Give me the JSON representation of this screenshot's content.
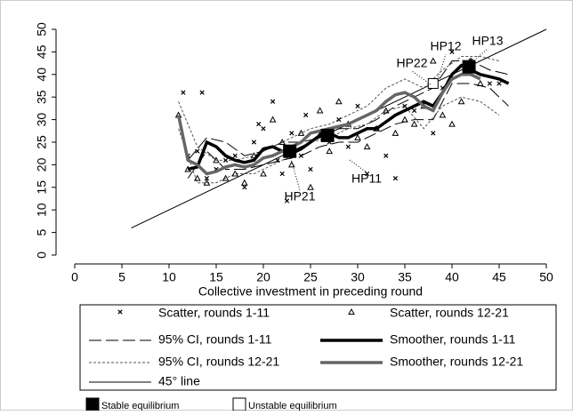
{
  "chart_data": {
    "type": "scatter-smoother",
    "xlabel": "Collective investment in preceding round",
    "xlim": [
      0,
      50
    ],
    "ylim": [
      0,
      50
    ],
    "xticks": [
      0,
      5,
      10,
      15,
      20,
      25,
      30,
      35,
      40,
      45,
      50
    ],
    "yticks": [
      0,
      5,
      10,
      15,
      20,
      25,
      30,
      35,
      40,
      45,
      50
    ],
    "series": [
      {
        "name": "Scatter, rounds 1-11",
        "kind": "scatter",
        "marker": "x",
        "color": "#000000",
        "x": [
          11.5,
          12,
          13,
          13.5,
          14,
          15,
          16,
          17,
          18,
          19,
          19.5,
          20,
          21,
          21.5,
          22,
          22.5,
          23,
          24,
          24.5,
          25,
          26,
          27,
          28,
          29,
          30,
          31,
          32,
          33,
          34,
          35,
          36,
          38,
          39,
          40,
          42,
          44,
          45
        ],
        "values": [
          36,
          22,
          23,
          36,
          17,
          19,
          21,
          22,
          15,
          25,
          29,
          28,
          34,
          21,
          18,
          12,
          27,
          22,
          31,
          19,
          27,
          25,
          30,
          24,
          33,
          18,
          28,
          22,
          17,
          33,
          32,
          27,
          37,
          45,
          43,
          38,
          38
        ]
      },
      {
        "name": "Scatter, rounds 12-21",
        "kind": "scatter",
        "marker": "triangle",
        "color": "#000000",
        "x": [
          11,
          12,
          13,
          14,
          15,
          16,
          17,
          18,
          19,
          20,
          21,
          22,
          23,
          24,
          25,
          26,
          27,
          28,
          29,
          30,
          31,
          32,
          33,
          34,
          35,
          36,
          37,
          38,
          39,
          40,
          41,
          42,
          43
        ],
        "values": [
          31,
          19,
          17,
          16,
          21,
          17,
          18,
          16,
          22,
          18,
          30,
          25,
          20,
          27,
          15,
          32,
          23,
          34,
          29,
          26,
          24,
          28,
          32,
          27,
          30,
          29,
          33,
          43,
          31,
          29,
          34,
          43,
          38
        ]
      },
      {
        "name": "95% CI, rounds 1-11",
        "kind": "ci",
        "dash": "long",
        "color": "#000000",
        "x": [
          12,
          14,
          16,
          18,
          20,
          22,
          24,
          26,
          28,
          30,
          32,
          34,
          36,
          38,
          40,
          42,
          44,
          46
        ],
        "values": [
          21,
          26,
          25,
          22,
          23,
          25,
          25,
          26,
          28,
          28,
          30,
          33,
          35,
          37,
          43,
          43,
          41,
          40
        ],
        "lower": [
          17,
          23,
          19,
          19,
          20,
          21,
          22,
          24,
          25,
          25,
          27,
          29,
          30,
          30,
          38,
          38,
          37,
          33
        ]
      },
      {
        "name": "Smoother, rounds 1-11",
        "kind": "smoother",
        "color": "#000000",
        "x": [
          12,
          13,
          14,
          15,
          16,
          17,
          18,
          19,
          20,
          21,
          22,
          23,
          24,
          25,
          26,
          27,
          28,
          29,
          30,
          31,
          32,
          33,
          34,
          35,
          36,
          37,
          38,
          39,
          40,
          41,
          42,
          43,
          44,
          45,
          46
        ],
        "values": [
          19,
          19.5,
          25,
          24,
          22,
          21,
          20.5,
          21,
          23.5,
          24,
          23,
          22.5,
          23.5,
          25,
          26.5,
          27,
          26,
          26,
          27,
          28,
          28,
          29.5,
          31,
          32,
          33,
          34,
          33,
          36,
          40,
          42,
          41,
          40,
          39.5,
          39,
          38
        ]
      },
      {
        "name": "95% CI, rounds 12-21",
        "kind": "ci",
        "dash": "short",
        "color": "#555555",
        "x": [
          11,
          13,
          15,
          17,
          19,
          21,
          23,
          25,
          27,
          29,
          31,
          33,
          35,
          37,
          39,
          41,
          43,
          45
        ],
        "values": [
          34,
          24,
          21,
          21,
          22,
          24,
          26,
          28,
          29,
          31,
          33,
          37,
          39,
          37,
          41,
          44,
          44,
          43
        ],
        "lower": [
          28,
          16,
          16,
          18,
          18,
          20,
          22,
          25,
          26,
          28,
          29,
          32,
          33,
          28,
          33,
          35,
          34,
          31
        ]
      },
      {
        "name": "Smoother, rounds 12-21",
        "kind": "smoother",
        "color": "#666666",
        "x": [
          11,
          12,
          13,
          14,
          15,
          16,
          17,
          18,
          19,
          20,
          21,
          22,
          23,
          24,
          25,
          26,
          27,
          28,
          29,
          30,
          31,
          32,
          33,
          34,
          35,
          36,
          37,
          38,
          39,
          40,
          41,
          42,
          43
        ],
        "values": [
          31,
          21,
          20,
          18,
          18.5,
          19.5,
          20,
          19.5,
          20,
          21.5,
          22,
          23,
          24,
          25,
          27,
          27.5,
          28,
          28.5,
          29,
          30,
          31,
          32,
          34,
          35.5,
          36,
          35,
          33,
          32,
          36,
          39,
          40,
          40,
          39
        ]
      },
      {
        "name": "45° line",
        "kind": "line",
        "color": "#000000",
        "x": [
          6,
          50
        ],
        "values": [
          6,
          50
        ]
      }
    ],
    "equilibria": [
      {
        "name": "Stable equilibrium",
        "filled": true,
        "x": [
          22.8,
          26.8,
          41.8
        ],
        "values": [
          23,
          26.5,
          41.7
        ]
      },
      {
        "name": "Unstable equilibrium",
        "filled": false,
        "x": [
          38
        ],
        "values": [
          38
        ]
      }
    ],
    "annotations": [
      "HP21",
      "HP11",
      "HP22",
      "HP12",
      "HP13"
    ]
  }
}
